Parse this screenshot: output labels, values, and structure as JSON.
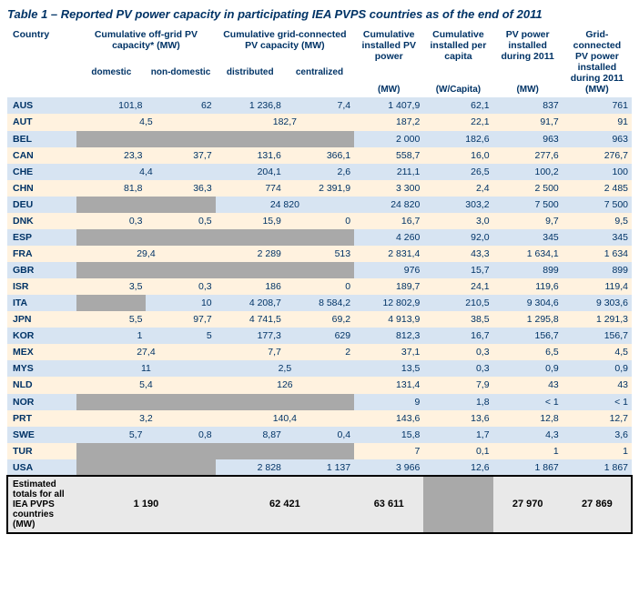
{
  "title": "Table 1 – Reported PV power capacity in participating IEA PVPS countries as of the end of 2011",
  "headers": {
    "country": "Country",
    "group1": "Cumulative off-grid PV capacity* (MW)",
    "group2": "Cumulative grid-connected PV capacity (MW)",
    "col5": "Cumulative installed PV power",
    "col6": "Cumulative installed per capita",
    "col7": "PV power installed during 2011",
    "col8": "Grid-connected PV power installed during 2011 (MW)",
    "sub1": "domestic",
    "sub2": "non-domestic",
    "sub3": "distributed",
    "sub4": "centralized",
    "unit5": "(MW)",
    "unit6": "(W/Capita)",
    "unit7": "(MW)"
  },
  "colors": {
    "even_row": "#d7e4f2",
    "odd_row": "#fff2df",
    "grey": "#a9a9a9",
    "totals_bg": "#e9e9e9",
    "text": "#003366"
  },
  "rows": [
    {
      "country": "AUS",
      "c": [
        "101,8",
        "62",
        "1 236,8",
        "7,4",
        "1 407,9",
        "62,1",
        "837",
        "761"
      ]
    },
    {
      "country": "AUT",
      "c": [
        {
          "span": 2,
          "val": "4,5"
        },
        null,
        {
          "span": 2,
          "val": "182,7"
        },
        null,
        "187,2",
        "22,1",
        "91,7",
        "91"
      ]
    },
    {
      "country": "BEL",
      "c": [
        {
          "grey": true
        },
        {
          "grey": true
        },
        {
          "grey": true
        },
        {
          "grey": true
        },
        "2 000",
        "182,6",
        "963",
        "963"
      ]
    },
    {
      "country": "CAN",
      "c": [
        "23,3",
        "37,7",
        "131,6",
        "366,1",
        "558,7",
        "16,0",
        "277,6",
        "276,7"
      ]
    },
    {
      "country": "CHE",
      "c": [
        {
          "span": 2,
          "val": "4,4"
        },
        null,
        "204,1",
        "2,6",
        "211,1",
        "26,5",
        "100,2",
        "100"
      ]
    },
    {
      "country": "CHN",
      "c": [
        "81,8",
        "36,3",
        "774",
        "2 391,9",
        "3 300",
        "2,4",
        "2 500",
        "2 485"
      ]
    },
    {
      "country": "DEU",
      "c": [
        {
          "grey": true
        },
        {
          "grey": true
        },
        {
          "span": 2,
          "val": "24 820"
        },
        null,
        "24 820",
        "303,2",
        "7 500",
        "7 500"
      ]
    },
    {
      "country": "DNK",
      "c": [
        "0,3",
        "0,5",
        "15,9",
        "0",
        "16,7",
        "3,0",
        "9,7",
        "9,5"
      ]
    },
    {
      "country": "ESP",
      "c": [
        {
          "grey": true
        },
        {
          "grey": true
        },
        {
          "grey": true
        },
        {
          "grey": true
        },
        "4 260",
        "92,0",
        "345",
        "345"
      ]
    },
    {
      "country": "FRA",
      "c": [
        {
          "span": 2,
          "val": "29,4"
        },
        null,
        "2 289",
        "513",
        "2 831,4",
        "43,3",
        "1 634,1",
        "1 634"
      ]
    },
    {
      "country": "GBR",
      "c": [
        {
          "grey": true
        },
        {
          "grey": true
        },
        {
          "grey": true
        },
        {
          "grey": true
        },
        "976",
        "15,7",
        "899",
        "899"
      ]
    },
    {
      "country": "ISR",
      "c": [
        "3,5",
        "0,3",
        "186",
        "0",
        "189,7",
        "24,1",
        "119,6",
        "119,4"
      ]
    },
    {
      "country": "ITA",
      "c": [
        {
          "grey": true
        },
        "10",
        "4 208,7",
        "8 584,2",
        "12 802,9",
        "210,5",
        "9 304,6",
        "9 303,6"
      ]
    },
    {
      "country": "JPN",
      "c": [
        "5,5",
        "97,7",
        "4 741,5",
        "69,2",
        "4 913,9",
        "38,5",
        "1 295,8",
        "1 291,3"
      ]
    },
    {
      "country": "KOR",
      "c": [
        "1",
        "5",
        "177,3",
        "629",
        "812,3",
        "16,7",
        "156,7",
        "156,7"
      ]
    },
    {
      "country": "MEX",
      "c": [
        {
          "span": 2,
          "val": "27,4"
        },
        null,
        "7,7",
        "2",
        "37,1",
        "0,3",
        "6,5",
        "4,5"
      ]
    },
    {
      "country": "MYS",
      "c": [
        {
          "span": 2,
          "val": "11"
        },
        null,
        {
          "span": 2,
          "val": "2,5"
        },
        null,
        "13,5",
        "0,3",
        "0,9",
        "0,9"
      ]
    },
    {
      "country": "NLD",
      "c": [
        {
          "span": 2,
          "val": "5,4"
        },
        null,
        {
          "span": 2,
          "val": "126"
        },
        null,
        "131,4",
        "7,9",
        "43",
        "43"
      ]
    },
    {
      "country": "NOR",
      "c": [
        {
          "grey": true
        },
        {
          "grey": true
        },
        {
          "grey": true
        },
        {
          "grey": true
        },
        "9",
        "1,8",
        "< 1",
        "< 1"
      ]
    },
    {
      "country": "PRT",
      "c": [
        {
          "span": 2,
          "val": "3,2"
        },
        null,
        {
          "span": 2,
          "val": "140,4"
        },
        null,
        "143,6",
        "13,6",
        "12,8",
        "12,7"
      ]
    },
    {
      "country": "SWE",
      "c": [
        "5,7",
        "0,8",
        "8,87",
        "0,4",
        "15,8",
        "1,7",
        "4,3",
        "3,6"
      ]
    },
    {
      "country": "TUR",
      "c": [
        {
          "grey": true
        },
        {
          "grey": true
        },
        {
          "grey": true
        },
        {
          "grey": true
        },
        "7",
        "0,1",
        "1",
        "1"
      ]
    },
    {
      "country": "USA",
      "c": [
        {
          "grey": true
        },
        {
          "grey": true
        },
        "2 828",
        "1 137",
        "3 966",
        "12,6",
        "1 867",
        "1 867"
      ]
    }
  ],
  "totals": {
    "label": "Estimated totals for all IEA PVPS countries (MW)",
    "vals": [
      "1 190",
      "62 421",
      "63 611",
      "",
      "27 970",
      "27 869"
    ]
  }
}
